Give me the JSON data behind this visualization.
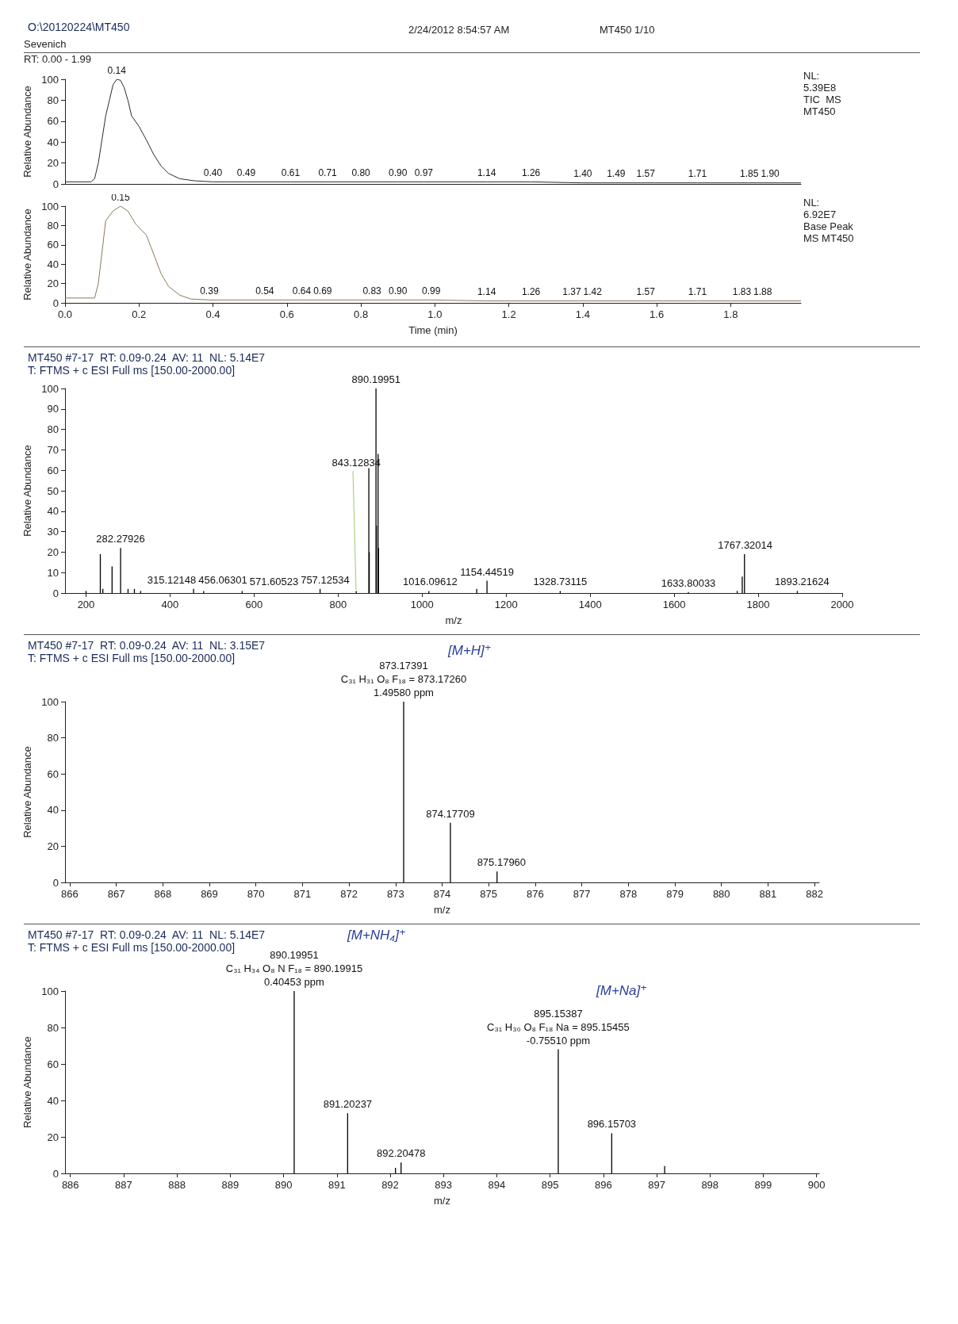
{
  "chart_data": [
    {
      "type": "line",
      "title": "O:\\20120224\\MT450",
      "ylabel": "Relative Abundance",
      "color": "#2b2b2b",
      "marker": "none",
      "line_style": "solid",
      "tick_labels": "y",
      "annotations": [
        "Sevenich",
        "2/24/2012 8:54:57 AM",
        "MT450 1/10",
        "RT: 0.00 - 1.99",
        "NL:\n5.39E8\nTIC  MS\nMT450",
        {
          "text": "0.14",
          "x": 0.14,
          "y": 100
        },
        {
          "text": "0.40",
          "x": 0.4,
          "y": 2
        },
        {
          "text": "0.49",
          "x": 0.49,
          "y": 2
        },
        {
          "text": "0.61",
          "x": 0.61,
          "y": 2
        },
        {
          "text": "0.71",
          "x": 0.71,
          "y": 2
        },
        {
          "text": "0.80",
          "x": 0.8,
          "y": 2
        },
        {
          "text": "0.90",
          "x": 0.9,
          "y": 2
        },
        {
          "text": "0.97",
          "x": 0.97,
          "y": 2
        },
        {
          "text": "1.14",
          "x": 1.14,
          "y": 2
        },
        {
          "text": "1.26",
          "x": 1.26,
          "y": 2
        },
        {
          "text": "1.40",
          "x": 1.4,
          "y": 1
        },
        {
          "text": "1.49",
          "x": 1.49,
          "y": 1
        },
        {
          "text": "1.57",
          "x": 1.57,
          "y": 1
        },
        {
          "text": "1.71",
          "x": 1.71,
          "y": 1
        },
        {
          "text": "1.85",
          "x": 1.85,
          "y": 1
        },
        {
          "text": "1.90",
          "x": 1.9,
          "y": 1
        }
      ],
      "x": [
        0,
        0.07,
        0.08,
        0.09,
        0.11,
        0.13,
        0.14,
        0.15,
        0.16,
        0.17,
        0.18,
        0.2,
        0.22,
        0.24,
        0.26,
        0.28,
        0.31,
        0.35,
        0.4,
        0.49,
        0.61,
        0.71,
        0.8,
        0.9,
        0.97,
        1.14,
        1.26,
        1.4,
        1.49,
        1.57,
        1.71,
        1.85,
        1.9,
        1.99
      ],
      "values": [
        2,
        2,
        5,
        20,
        65,
        95,
        100,
        99,
        92,
        80,
        65,
        55,
        42,
        28,
        17,
        10,
        5,
        3,
        2,
        2,
        2,
        2,
        2,
        2,
        2,
        2,
        2,
        1,
        1,
        1,
        1,
        1,
        1,
        1
      ],
      "xlim": [
        0,
        1.99
      ],
      "ylim": [
        0,
        100
      ],
      "yticks": [
        0,
        20,
        40,
        60,
        80,
        100
      ]
    },
    {
      "type": "line",
      "xlabel": "Time (min)",
      "ylabel": "Relative Abundance",
      "color": "#8a7a5a",
      "marker": "none",
      "line_style": "solid",
      "annotations": [
        "NL:\n6.92E7\nBase Peak\nMS MT450",
        {
          "text": "0.15",
          "x": 0.15,
          "y": 100
        },
        {
          "text": "0.39",
          "x": 0.39,
          "y": 3
        },
        {
          "text": "0.54",
          "x": 0.54,
          "y": 3
        },
        {
          "text": "0.64",
          "x": 0.64,
          "y": 3
        },
        {
          "text": "0.69",
          "x": 0.69,
          "y": 3
        },
        {
          "text": "0.83",
          "x": 0.83,
          "y": 3
        },
        {
          "text": "0.90",
          "x": 0.9,
          "y": 3
        },
        {
          "text": "0.99",
          "x": 0.99,
          "y": 3
        },
        {
          "text": "1.14",
          "x": 1.14,
          "y": 2
        },
        {
          "text": "1.26",
          "x": 1.26,
          "y": 2
        },
        {
          "text": "1.37",
          "x": 1.37,
          "y": 2
        },
        {
          "text": "1.42",
          "x": 1.42,
          "y": 2
        },
        {
          "text": "1.57",
          "x": 1.57,
          "y": 2
        },
        {
          "text": "1.71",
          "x": 1.71,
          "y": 2
        },
        {
          "text": "1.83",
          "x": 1.83,
          "y": 2
        },
        {
          "text": "1.88",
          "x": 1.88,
          "y": 2
        }
      ],
      "x": [
        0,
        0.08,
        0.09,
        0.11,
        0.13,
        0.15,
        0.17,
        0.19,
        0.22,
        0.24,
        0.26,
        0.28,
        0.31,
        0.34,
        0.39,
        0.54,
        0.64,
        0.69,
        0.83,
        0.9,
        0.99,
        1.14,
        1.26,
        1.37,
        1.42,
        1.57,
        1.71,
        1.83,
        1.88,
        1.99
      ],
      "values": [
        5,
        5,
        20,
        85,
        95,
        100,
        95,
        82,
        70,
        50,
        30,
        17,
        8,
        4,
        3,
        3,
        3,
        3,
        3,
        3,
        3,
        2,
        2,
        2,
        2,
        2,
        2,
        2,
        2,
        2
      ],
      "xlim": [
        0,
        1.99
      ],
      "ylim": [
        0,
        100
      ],
      "yticks": [
        0,
        20,
        40,
        60,
        80,
        100
      ],
      "xticks": [
        {
          "value": 0,
          "label": "0.0"
        },
        {
          "value": 0.2,
          "label": "0.2"
        },
        {
          "value": 0.4,
          "label": "0.4"
        },
        {
          "value": 0.6,
          "label": "0.6"
        },
        {
          "value": 0.8,
          "label": "0.8"
        },
        {
          "value": 1,
          "label": "1.0"
        },
        {
          "value": 1.2,
          "label": "1.2"
        },
        {
          "value": 1.4,
          "label": "1.4"
        },
        {
          "value": 1.6,
          "label": "1.6"
        },
        {
          "value": 1.8,
          "label": "1.8"
        }
      ]
    },
    {
      "type": "bar",
      "title": "MT450 #7-17  RT: 0.09-0.24  AV: 11  NL: 5.14E7",
      "subtitle": "T: FTMS + c ESI Full ms [150.00-2000.00]",
      "xlabel": "m/z",
      "ylabel": "Relative Abundance",
      "color": "#000000",
      "annotations": [
        {
          "text": "282.27926",
          "x": 282.27926,
          "y": 22
        },
        {
          "text": "315.12148",
          "x": 315.12148,
          "y": 2
        },
        {
          "text": "456.06301",
          "x": 456.06301,
          "y": 2
        },
        {
          "text": "571.60523",
          "x": 571.60523,
          "y": 1
        },
        {
          "text": "757.12534",
          "x": 757.12534,
          "y": 2
        },
        {
          "text": "843.12834",
          "x": 843.12834,
          "y": 1
        },
        {
          "text": "890.19951",
          "x": 890.19951,
          "y": 100
        },
        {
          "text": "1016.09612",
          "x": 1016.09612,
          "y": 1
        },
        {
          "text": "1154.44519",
          "x": 1154.44519,
          "y": 6
        },
        {
          "text": "1328.73115",
          "x": 1328.73115,
          "y": 1
        },
        {
          "text": "1633.80033",
          "x": 1633.80033,
          "y": 0.5
        },
        {
          "text": "1767.32014",
          "x": 1767.32014,
          "y": 19
        },
        {
          "text": "1893.21624",
          "x": 1893.21624,
          "y": 1
        }
      ],
      "x": [
        200,
        234,
        240,
        262,
        282.27926,
        300,
        315.12148,
        330,
        456.06301,
        480,
        571.60523,
        757.12534,
        843.12834,
        873.17391,
        874.17709,
        890.19951,
        891.20237,
        895.15387,
        896.15703,
        1016.09612,
        1130,
        1154.44519,
        1328.73115,
        1633.80033,
        1750,
        1762,
        1767.32014,
        1893.21624
      ],
      "values": [
        1,
        19,
        2,
        13,
        22,
        2,
        2,
        1,
        2,
        1,
        1,
        2,
        1,
        61,
        20,
        100,
        33,
        68,
        22,
        1,
        2,
        6,
        1,
        0.5,
        1,
        8,
        19,
        1
      ],
      "xlim": [
        150,
        2000
      ],
      "ylim": [
        0,
        100
      ],
      "xticks": [
        200,
        400,
        600,
        800,
        1000,
        1200,
        1400,
        1600,
        1800,
        2000
      ],
      "yticks": [
        0,
        10,
        20,
        30,
        40,
        50,
        60,
        70,
        80,
        90,
        100
      ]
    },
    {
      "type": "bar",
      "title": "MT450 #7-17  RT: 0.09-0.24  AV: 11  NL: 3.15E7",
      "subtitle": "T: FTMS + c ESI Full ms [150.00-2000.00]",
      "xlabel": "m/z",
      "ylabel": "Relative Abundance",
      "color": "#000000",
      "annotations": [
        "[M+H]⁺",
        {
          "text": "873.17391\nC₃₁ H₃₁ O₈ F₁₈ = 873.17260\n1.49580 ppm",
          "x": 873.17391,
          "y": 100
        },
        {
          "text": "874.17709",
          "x": 874.17709,
          "y": 33
        },
        {
          "text": "875.17960",
          "x": 875.1796,
          "y": 6
        }
      ],
      "x": [
        873.17391,
        874.17709,
        875.1796
      ],
      "values": [
        100,
        33,
        6
      ],
      "xlim": [
        865.9,
        882.1
      ],
      "ylim": [
        0,
        100
      ],
      "xticks": [
        866,
        867,
        868,
        869,
        870,
        871,
        872,
        873,
        874,
        875,
        876,
        877,
        878,
        879,
        880,
        881,
        882
      ],
      "yticks": [
        0,
        20,
        40,
        60,
        80,
        100
      ]
    },
    {
      "type": "bar",
      "title": "MT450 #7-17  RT: 0.09-0.24  AV: 11  NL: 5.14E7",
      "subtitle": "T: FTMS + c ESI Full ms [150.00-2000.00]",
      "xlabel": "m/z",
      "ylabel": "Relative Abundance",
      "color": "#000000",
      "annotations": [
        "[M+NH₄]⁺",
        "[M+Na]⁺",
        {
          "text": "890.19951\nC₃₁ H₃₄ O₈ N F₁₈ = 890.19915\n0.40453 ppm",
          "x": 890.19951,
          "y": 100
        },
        {
          "text": "891.20237",
          "x": 891.20237,
          "y": 33
        },
        {
          "text": "892.20478",
          "x": 892.20478,
          "y": 6
        },
        {
          "text": "895.15387\nC₃₁ H₃₀ O₈ F₁₈ Na = 895.15455\n-0.75510 ppm",
          "x": 895.15387,
          "y": 68
        },
        {
          "text": "896.15703",
          "x": 896.15703,
          "y": 22
        }
      ],
      "x": [
        890.19951,
        891.20237,
        892.1,
        892.20478,
        895.15387,
        896.15703,
        897.15
      ],
      "values": [
        100,
        33,
        3,
        6,
        68,
        22,
        4
      ],
      "xlim": [
        885.9,
        900.05
      ],
      "ylim": [
        0,
        100
      ],
      "xticks": [
        886,
        887,
        888,
        889,
        890,
        891,
        892,
        893,
        894,
        895,
        896,
        897,
        898,
        899,
        900
      ],
      "yticks": [
        0,
        20,
        40,
        60,
        80,
        100
      ]
    }
  ]
}
